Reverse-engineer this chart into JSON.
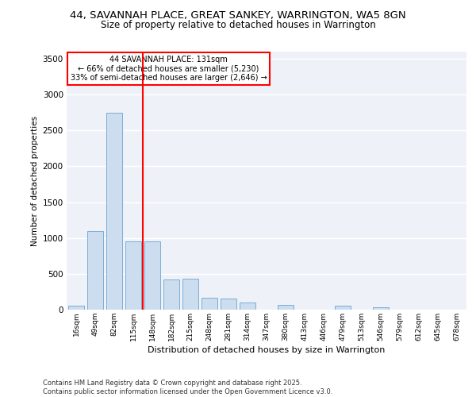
{
  "title_line1": "44, SAVANNAH PLACE, GREAT SANKEY, WARRINGTON, WA5 8GN",
  "title_line2": "Size of property relative to detached houses in Warrington",
  "xlabel": "Distribution of detached houses by size in Warrington",
  "ylabel": "Number of detached properties",
  "categories": [
    "16sqm",
    "49sqm",
    "82sqm",
    "115sqm",
    "148sqm",
    "182sqm",
    "215sqm",
    "248sqm",
    "281sqm",
    "314sqm",
    "347sqm",
    "380sqm",
    "413sqm",
    "446sqm",
    "479sqm",
    "513sqm",
    "546sqm",
    "579sqm",
    "612sqm",
    "645sqm",
    "678sqm"
  ],
  "values": [
    55,
    1100,
    2750,
    950,
    950,
    420,
    430,
    170,
    160,
    95,
    0,
    70,
    0,
    0,
    55,
    0,
    28,
    0,
    0,
    0,
    0
  ],
  "bar_color": "#ccddf0",
  "bar_edgecolor": "#7aadd4",
  "vline_color": "red",
  "vline_pos": 3.5,
  "annotation_title": "44 SAVANNAH PLACE: 131sqm",
  "annotation_line2": "← 66% of detached houses are smaller (5,230)",
  "annotation_line3": "33% of semi-detached houses are larger (2,646) →",
  "ylim": [
    0,
    3600
  ],
  "yticks": [
    0,
    500,
    1000,
    1500,
    2000,
    2500,
    3000,
    3500
  ],
  "background_color": "#eef2f8",
  "grid_color": "white",
  "footer_line1": "Contains HM Land Registry data © Crown copyright and database right 2025.",
  "footer_line2": "Contains public sector information licensed under the Open Government Licence v3.0."
}
